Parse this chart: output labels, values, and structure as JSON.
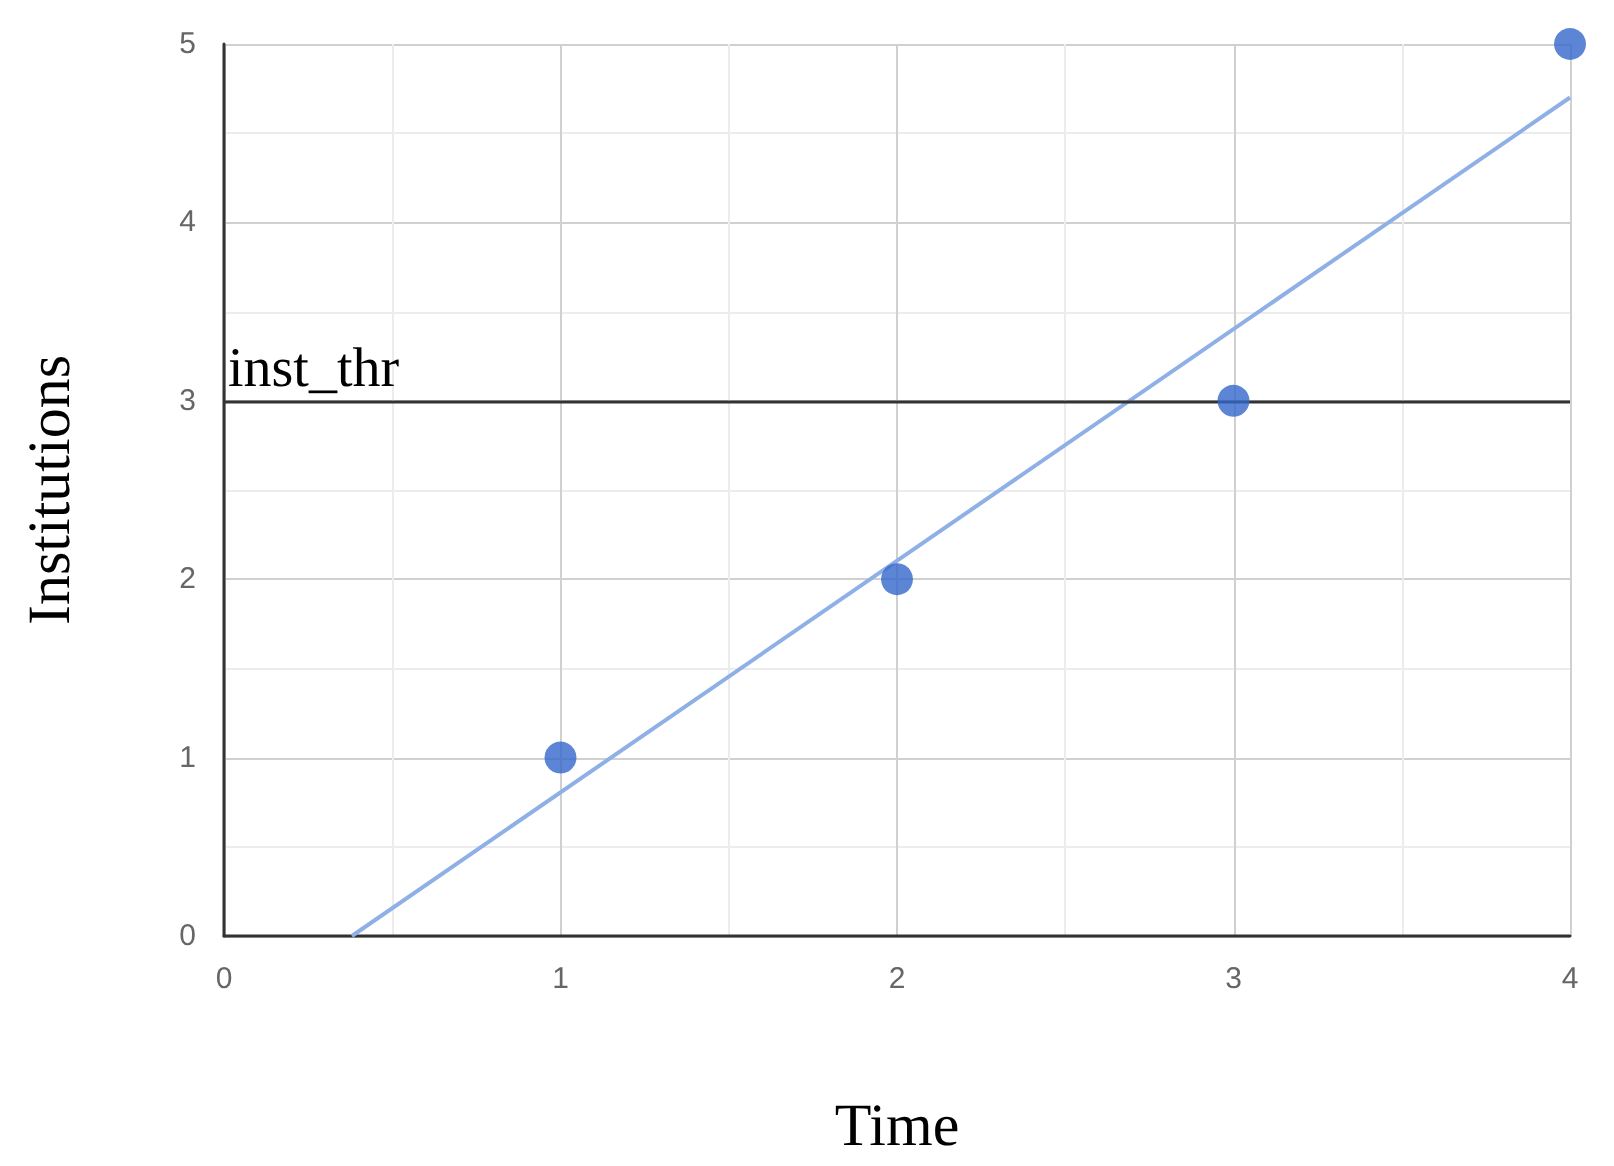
{
  "chart_data": {
    "type": "scatter",
    "xlabel": "Time",
    "ylabel": "Institutions",
    "series": [
      {
        "color": "#3366cc",
        "x": [
          1,
          2,
          3,
          4
        ],
        "values": [
          1,
          2,
          3,
          5
        ],
        "marker": "circle"
      },
      {
        "type": "line",
        "color": "#8fb0e6",
        "x": [
          0.38,
          4
        ],
        "values": [
          0,
          4.7
        ],
        "marker": "none"
      }
    ],
    "xlim": [
      0,
      4
    ],
    "xticks": [
      0,
      1,
      2,
      3,
      4
    ],
    "ylim": [
      0,
      5
    ],
    "yticks": [
      0,
      1,
      2,
      3,
      4,
      5
    ],
    "ref_lines": [
      {
        "axis": "y",
        "value": 3,
        "label": "inst_thr",
        "color": "#333333",
        "line_style": "solid"
      }
    ],
    "grid": true
  }
}
